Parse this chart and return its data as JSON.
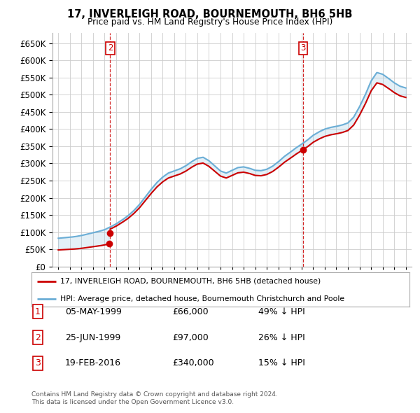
{
  "title": "17, INVERLEIGH ROAD, BOURNEMOUTH, BH6 5HB",
  "subtitle": "Price paid vs. HM Land Registry's House Price Index (HPI)",
  "legend_line1": "17, INVERLEIGH ROAD, BOURNEMOUTH, BH6 5HB (detached house)",
  "legend_line2": "HPI: Average price, detached house, Bournemouth Christchurch and Poole",
  "footer1": "Contains HM Land Registry data © Crown copyright and database right 2024.",
  "footer2": "This data is licensed under the Open Government Licence v3.0.",
  "transactions": [
    {
      "num": "1",
      "date": "05-MAY-1999",
      "price": "£66,000",
      "pct": "49% ↓ HPI",
      "x_year": 1999.37,
      "y": 66000
    },
    {
      "num": "2",
      "date": "25-JUN-1999",
      "price": "£97,000",
      "pct": "26% ↓ HPI",
      "x_year": 1999.48,
      "y": 97000
    },
    {
      "num": "3",
      "date": "19-FEB-2016",
      "price": "£340,000",
      "pct": "15% ↓ HPI",
      "x_year": 2016.13,
      "y": 340000
    }
  ],
  "hpi_color": "#6baed6",
  "price_color": "#cc0000",
  "grid_color": "#cccccc",
  "background_color": "#ffffff",
  "ylim": [
    0,
    680000
  ],
  "xlim_start": 1994.5,
  "xlim_end": 2025.5,
  "hpi_years": [
    1995,
    1995.5,
    1996,
    1996.5,
    1997,
    1997.5,
    1998,
    1998.5,
    1999,
    1999.5,
    2000,
    2000.5,
    2001,
    2001.5,
    2002,
    2002.5,
    2003,
    2003.5,
    2004,
    2004.5,
    2005,
    2005.5,
    2006,
    2006.5,
    2007,
    2007.5,
    2008,
    2008.5,
    2009,
    2009.5,
    2010,
    2010.5,
    2011,
    2011.5,
    2012,
    2012.5,
    2013,
    2013.5,
    2014,
    2014.5,
    2015,
    2015.5,
    2016,
    2016.5,
    2017,
    2017.5,
    2018,
    2018.5,
    2019,
    2019.5,
    2020,
    2020.5,
    2021,
    2021.5,
    2022,
    2022.5,
    2023,
    2023.5,
    2024,
    2024.5,
    2025
  ],
  "hpi_values": [
    82000,
    83500,
    85000,
    87000,
    90000,
    94000,
    98000,
    102000,
    107000,
    115000,
    124000,
    135000,
    147000,
    162000,
    180000,
    202000,
    224000,
    244000,
    260000,
    272000,
    278000,
    284000,
    293000,
    305000,
    315000,
    318000,
    308000,
    293000,
    278000,
    272000,
    280000,
    288000,
    290000,
    286000,
    280000,
    279000,
    283000,
    292000,
    305000,
    320000,
    332000,
    345000,
    356000,
    368000,
    382000,
    392000,
    400000,
    405000,
    408000,
    412000,
    418000,
    435000,
    465000,
    500000,
    540000,
    565000,
    560000,
    548000,
    535000,
    525000,
    520000
  ]
}
